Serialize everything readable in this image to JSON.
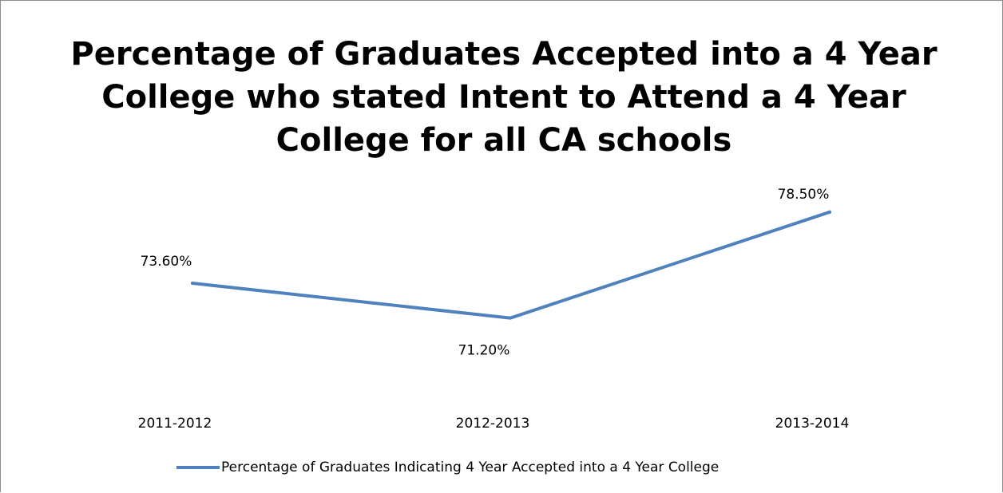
{
  "chart_data": {
    "type": "line",
    "title": "Percentage of Graduates Accepted into a 4 Year College who stated Intent to Attend a 4 Year College for all CA schools",
    "categories": [
      "2011-2012",
      "2012-2013",
      "2013-2014"
    ],
    "series": [
      {
        "name": "Percentage of Graduates Indicating 4 Year Accepted into a 4 Year College",
        "values": [
          73.6,
          71.2,
          78.5
        ],
        "labels": [
          "73.60%",
          "71.20%",
          "78.50%"
        ],
        "color": "#4f81bd"
      }
    ],
    "xlabel": "",
    "ylabel": "",
    "grid": false,
    "legend_position": "bottom"
  }
}
